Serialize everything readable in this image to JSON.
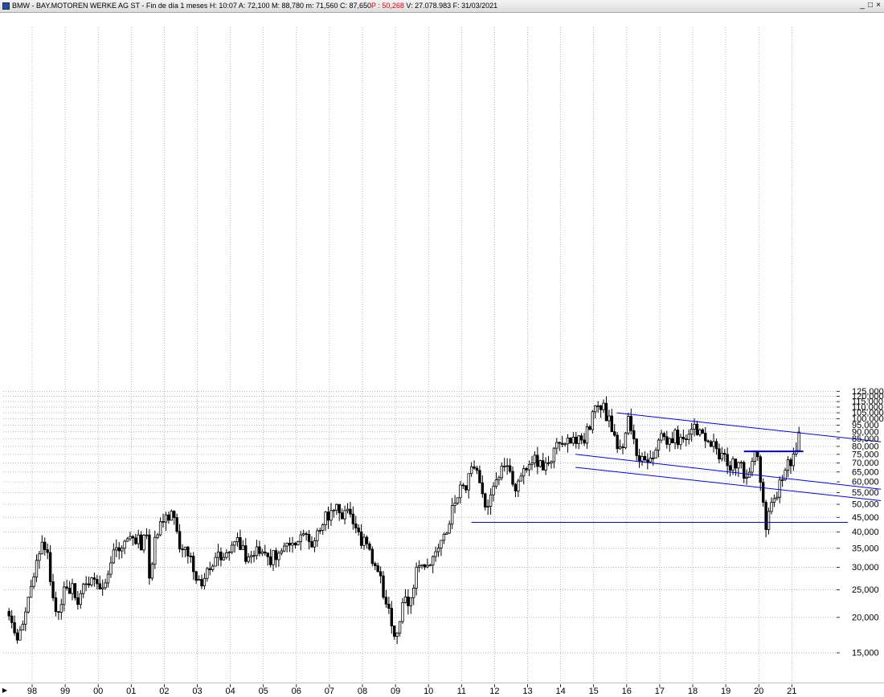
{
  "window": {
    "title_main": "BMW - BAY.MOTOREN WERKE AG ST - Fin de día 1 meses  H: 10:07  A: 72,100  M: 88,780  m: 71,560  C: 87,650",
    "title_p": "P : 50,268",
    "title_tail": "  V: 27.078.983  F: 31/03/2021",
    "btn_minimize": "_",
    "btn_restore": "□",
    "btn_close": "×"
  },
  "scroll_arrow": "▶",
  "colors": {
    "candles": "#000000",
    "trendlines": "#0000ee",
    "grid": "#9a9a9a",
    "title_highlight": "#e8000b"
  },
  "chart_data": {
    "type": "candlestick",
    "scale": "log",
    "grid": true,
    "x_axis": {
      "ticks": [
        "98",
        "99",
        "00",
        "01",
        "02",
        "03",
        "04",
        "05",
        "06",
        "07",
        "08",
        "09",
        "10",
        "11",
        "12",
        "13",
        "14",
        "15",
        "16",
        "17",
        "18",
        "19",
        "20",
        "21"
      ]
    },
    "y_axis": {
      "position": "right",
      "ticks": [
        {
          "value": 15,
          "label": "15,000"
        },
        {
          "value": 20,
          "label": "20,000"
        },
        {
          "value": 25,
          "label": "25,000"
        },
        {
          "value": 30,
          "label": "30,000"
        },
        {
          "value": 35,
          "label": "35,000"
        },
        {
          "value": 40,
          "label": "40,000"
        },
        {
          "value": 45,
          "label": "45,000"
        },
        {
          "value": 50,
          "label": "50,000"
        },
        {
          "value": 55,
          "label": "55,000"
        },
        {
          "value": 60,
          "label": "60,000"
        },
        {
          "value": 65,
          "label": "65,000"
        },
        {
          "value": 70,
          "label": "70,000"
        },
        {
          "value": 75,
          "label": "75,000"
        },
        {
          "value": 80,
          "label": "80,000"
        },
        {
          "value": 85,
          "label": "85,000"
        },
        {
          "value": 90,
          "label": "90,000"
        },
        {
          "value": 95,
          "label": "95,000"
        },
        {
          "value": 100,
          "label": "100,000"
        },
        {
          "value": 105,
          "label": "105,000"
        },
        {
          "value": 110,
          "label": "110,000"
        },
        {
          "value": 115,
          "label": "115,000"
        },
        {
          "value": 120,
          "label": "120,000"
        },
        {
          "value": 125,
          "label": "125,000"
        }
      ]
    },
    "price_path": [
      {
        "t": 1997.3,
        "p": 21
      },
      {
        "t": 1997.55,
        "p": 16
      },
      {
        "t": 1997.8,
        "p": 20.5
      },
      {
        "t": 1998.1,
        "p": 30
      },
      {
        "t": 1998.3,
        "p": 38
      },
      {
        "t": 1998.45,
        "p": 34
      },
      {
        "t": 1998.75,
        "p": 18.5
      },
      {
        "t": 1998.9,
        "p": 24
      },
      {
        "t": 1999.2,
        "p": 25
      },
      {
        "t": 1999.4,
        "p": 23
      },
      {
        "t": 1999.7,
        "p": 27
      },
      {
        "t": 1999.9,
        "p": 28
      },
      {
        "t": 2000.1,
        "p": 24
      },
      {
        "t": 2000.3,
        "p": 30
      },
      {
        "t": 2000.5,
        "p": 35
      },
      {
        "t": 2000.7,
        "p": 34
      },
      {
        "t": 2000.9,
        "p": 38
      },
      {
        "t": 2001.1,
        "p": 38
      },
      {
        "t": 2001.3,
        "p": 36
      },
      {
        "t": 2001.45,
        "p": 41
      },
      {
        "t": 2001.55,
        "p": 26
      },
      {
        "t": 2001.7,
        "p": 39
      },
      {
        "t": 2001.85,
        "p": 41
      },
      {
        "t": 2002.05,
        "p": 44
      },
      {
        "t": 2002.2,
        "p": 47
      },
      {
        "t": 2002.35,
        "p": 42
      },
      {
        "t": 2002.45,
        "p": 34
      },
      {
        "t": 2002.6,
        "p": 36
      },
      {
        "t": 2002.8,
        "p": 31
      },
      {
        "t": 2002.95,
        "p": 27
      },
      {
        "t": 2003.15,
        "p": 25
      },
      {
        "t": 2003.35,
        "p": 30
      },
      {
        "t": 2003.6,
        "p": 33
      },
      {
        "t": 2003.9,
        "p": 35
      },
      {
        "t": 2004.2,
        "p": 37
      },
      {
        "t": 2004.5,
        "p": 33
      },
      {
        "t": 2004.8,
        "p": 34
      },
      {
        "t": 2005.1,
        "p": 32
      },
      {
        "t": 2005.4,
        "p": 33
      },
      {
        "t": 2005.7,
        "p": 37
      },
      {
        "t": 2006.0,
        "p": 37
      },
      {
        "t": 2006.3,
        "p": 40
      },
      {
        "t": 2006.5,
        "p": 36
      },
      {
        "t": 2006.7,
        "p": 41
      },
      {
        "t": 2006.9,
        "p": 45
      },
      {
        "t": 2007.1,
        "p": 47
      },
      {
        "t": 2007.25,
        "p": 50
      },
      {
        "t": 2007.45,
        "p": 45
      },
      {
        "t": 2007.6,
        "p": 47
      },
      {
        "t": 2007.8,
        "p": 40
      },
      {
        "t": 2007.95,
        "p": 38
      },
      {
        "t": 2008.15,
        "p": 35
      },
      {
        "t": 2008.35,
        "p": 31
      },
      {
        "t": 2008.55,
        "p": 27
      },
      {
        "t": 2008.75,
        "p": 22
      },
      {
        "t": 2008.95,
        "p": 17
      },
      {
        "t": 2009.1,
        "p": 19
      },
      {
        "t": 2009.25,
        "p": 22
      },
      {
        "t": 2009.45,
        "p": 24
      },
      {
        "t": 2009.65,
        "p": 29
      },
      {
        "t": 2009.85,
        "p": 32
      },
      {
        "t": 2010.0,
        "p": 30
      },
      {
        "t": 2010.25,
        "p": 34
      },
      {
        "t": 2010.45,
        "p": 38
      },
      {
        "t": 2010.65,
        "p": 44
      },
      {
        "t": 2010.85,
        "p": 53
      },
      {
        "t": 2011.0,
        "p": 58
      },
      {
        "t": 2011.2,
        "p": 60
      },
      {
        "t": 2011.35,
        "p": 68
      },
      {
        "t": 2011.45,
        "p": 70
      },
      {
        "t": 2011.55,
        "p": 57
      },
      {
        "t": 2011.65,
        "p": 51
      },
      {
        "t": 2011.75,
        "p": 49
      },
      {
        "t": 2011.9,
        "p": 55
      },
      {
        "t": 2012.1,
        "p": 62
      },
      {
        "t": 2012.25,
        "p": 70
      },
      {
        "t": 2012.4,
        "p": 65
      },
      {
        "t": 2012.55,
        "p": 60
      },
      {
        "t": 2012.7,
        "p": 58
      },
      {
        "t": 2012.9,
        "p": 64
      },
      {
        "t": 2013.1,
        "p": 72
      },
      {
        "t": 2013.3,
        "p": 70
      },
      {
        "t": 2013.5,
        "p": 67
      },
      {
        "t": 2013.7,
        "p": 74
      },
      {
        "t": 2013.9,
        "p": 82
      },
      {
        "t": 2014.1,
        "p": 86
      },
      {
        "t": 2014.25,
        "p": 80
      },
      {
        "t": 2014.45,
        "p": 85
      },
      {
        "t": 2014.6,
        "p": 89
      },
      {
        "t": 2014.75,
        "p": 86
      },
      {
        "t": 2014.85,
        "p": 92
      },
      {
        "t": 2014.95,
        "p": 100
      },
      {
        "t": 2015.05,
        "p": 110
      },
      {
        "t": 2015.15,
        "p": 118
      },
      {
        "t": 2015.25,
        "p": 112
      },
      {
        "t": 2015.35,
        "p": 105
      },
      {
        "t": 2015.5,
        "p": 98
      },
      {
        "t": 2015.65,
        "p": 88
      },
      {
        "t": 2015.8,
        "p": 78
      },
      {
        "t": 2015.95,
        "p": 88
      },
      {
        "t": 2016.05,
        "p": 97
      },
      {
        "t": 2016.15,
        "p": 88
      },
      {
        "t": 2016.3,
        "p": 76
      },
      {
        "t": 2016.45,
        "p": 71
      },
      {
        "t": 2016.6,
        "p": 68
      },
      {
        "t": 2016.75,
        "p": 73
      },
      {
        "t": 2016.9,
        "p": 80
      },
      {
        "t": 2017.05,
        "p": 86
      },
      {
        "t": 2017.25,
        "p": 84
      },
      {
        "t": 2017.45,
        "p": 87
      },
      {
        "t": 2017.65,
        "p": 83
      },
      {
        "t": 2017.85,
        "p": 88
      },
      {
        "t": 2018.05,
        "p": 93
      },
      {
        "t": 2018.2,
        "p": 86
      },
      {
        "t": 2018.35,
        "p": 89
      },
      {
        "t": 2018.5,
        "p": 84
      },
      {
        "t": 2018.7,
        "p": 78
      },
      {
        "t": 2018.85,
        "p": 74
      },
      {
        "t": 2019.0,
        "p": 70
      },
      {
        "t": 2019.15,
        "p": 66
      },
      {
        "t": 2019.3,
        "p": 71
      },
      {
        "t": 2019.45,
        "p": 68
      },
      {
        "t": 2019.6,
        "p": 62
      },
      {
        "t": 2019.75,
        "p": 68
      },
      {
        "t": 2019.9,
        "p": 74
      },
      {
        "t": 2020.0,
        "p": 70
      },
      {
        "t": 2020.1,
        "p": 55
      },
      {
        "t": 2020.2,
        "p": 40
      },
      {
        "t": 2020.3,
        "p": 46
      },
      {
        "t": 2020.45,
        "p": 52
      },
      {
        "t": 2020.6,
        "p": 57
      },
      {
        "t": 2020.75,
        "p": 60
      },
      {
        "t": 2020.9,
        "p": 70
      },
      {
        "t": 2021.0,
        "p": 71
      },
      {
        "t": 2021.1,
        "p": 74
      },
      {
        "t": 2021.2,
        "p": 88
      }
    ],
    "lines": [
      {
        "name": "upper-channel-line",
        "color": "#0000ee",
        "from": {
          "t": 2015.7,
          "p": 105
        },
        "to": {
          "t": 2023.7,
          "p": 83
        }
      },
      {
        "name": "middle-channel-line",
        "color": "#0000ee",
        "from": {
          "t": 2014.45,
          "p": 75
        },
        "to": {
          "t": 2023.7,
          "p": 56.5
        }
      },
      {
        "name": "lower-channel-line",
        "color": "#0000ee",
        "from": {
          "t": 2014.45,
          "p": 67.5
        },
        "to": {
          "t": 2023.7,
          "p": 51.5
        }
      },
      {
        "name": "support-line",
        "color": "#0000ee",
        "from": {
          "t": 2011.3,
          "p": 43.2
        },
        "to": {
          "t": 2022.7,
          "p": 43.2
        }
      },
      {
        "name": "resistance-line",
        "color": "#0000ee",
        "from": {
          "t": 2019.55,
          "p": 76.8
        },
        "to": {
          "t": 2021.35,
          "p": 76.8
        }
      }
    ]
  }
}
